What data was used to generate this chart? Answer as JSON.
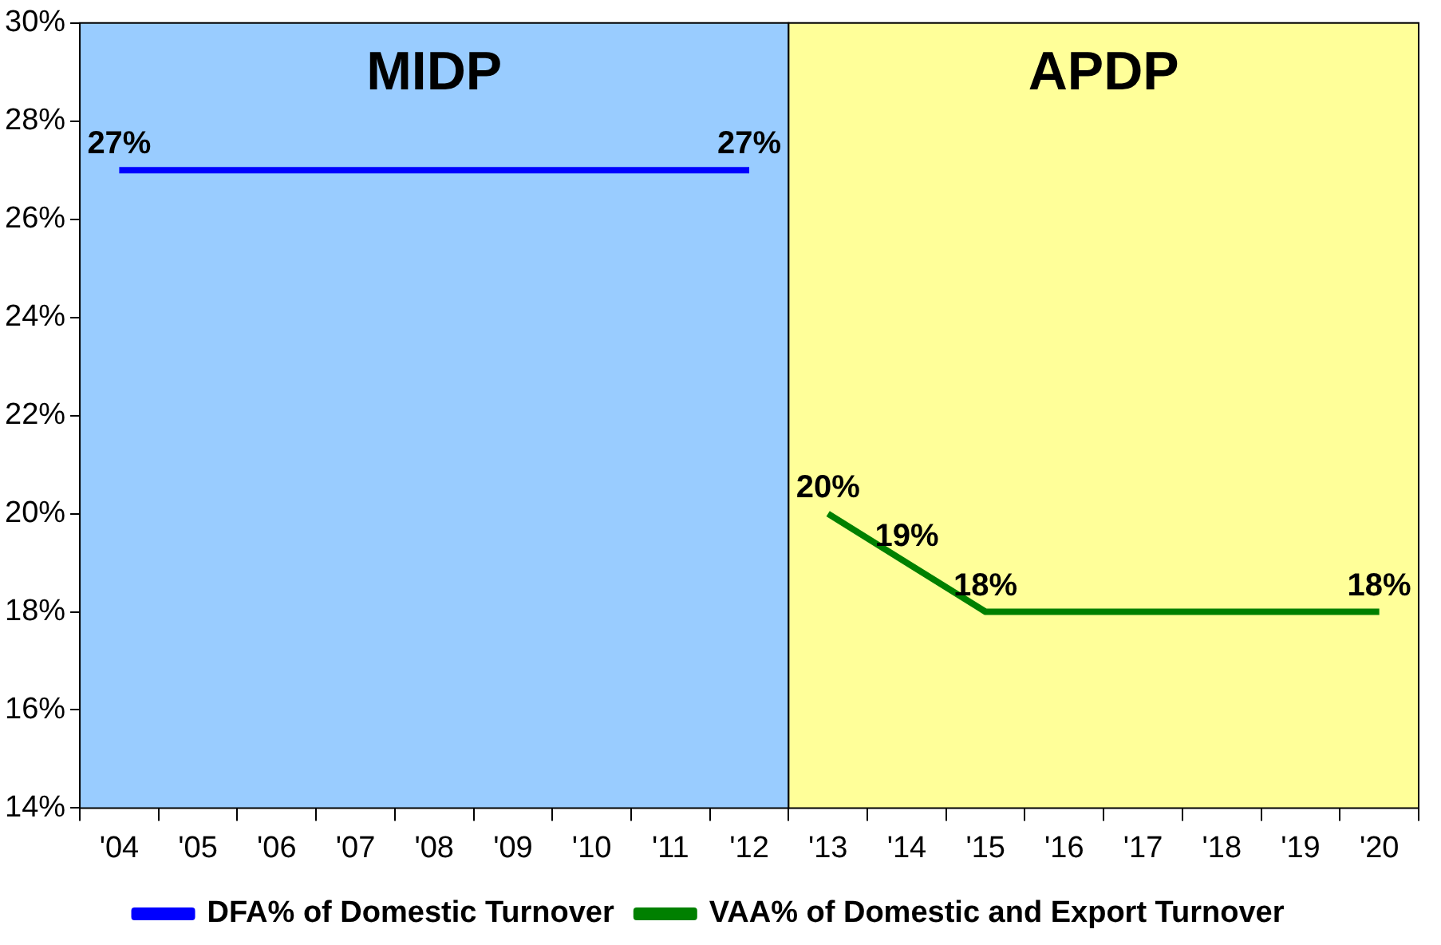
{
  "chart_data": {
    "type": "line",
    "categories": [
      "'04",
      "'05",
      "'06",
      "'07",
      "'08",
      "'09",
      "'10",
      "'11",
      "'12",
      "'13",
      "'14",
      "'15",
      "'16",
      "'17",
      "'18",
      "'19",
      "'20"
    ],
    "series": [
      {
        "name": "DFA% of Domestic Turnover",
        "color": "#0000ff",
        "values": [
          27,
          27,
          27,
          27,
          27,
          27,
          27,
          27,
          27,
          null,
          null,
          null,
          null,
          null,
          null,
          null,
          null
        ],
        "value_labels": [
          "27%",
          null,
          null,
          null,
          null,
          null,
          null,
          null,
          "27%",
          null,
          null,
          null,
          null,
          null,
          null,
          null,
          null
        ]
      },
      {
        "name": "VAA% of Domestic and Export Turnover",
        "color": "#008000",
        "values": [
          null,
          null,
          null,
          null,
          null,
          null,
          null,
          null,
          null,
          20,
          19,
          18,
          18,
          18,
          18,
          18,
          18
        ],
        "value_labels": [
          null,
          null,
          null,
          null,
          null,
          null,
          null,
          null,
          null,
          "20%",
          "19%",
          "18%",
          null,
          null,
          null,
          null,
          "18%"
        ]
      }
    ],
    "ylim": [
      14,
      30
    ],
    "yticks": [
      {
        "value": 14,
        "label": "14%"
      },
      {
        "value": 16,
        "label": "16%"
      },
      {
        "value": 18,
        "label": "18%"
      },
      {
        "value": 20,
        "label": "20%"
      },
      {
        "value": 22,
        "label": "22%"
      },
      {
        "value": 24,
        "label": "24%"
      },
      {
        "value": 26,
        "label": "26%"
      },
      {
        "value": 28,
        "label": "28%"
      },
      {
        "value": 30,
        "label": "30%"
      }
    ],
    "bands": [
      {
        "axis": "x",
        "from": "'04",
        "to": "'12",
        "label": "MIDP",
        "color": "#99ccff"
      },
      {
        "axis": "x",
        "from": "'13",
        "to": "'20",
        "label": "APDP",
        "color": "#ffff99"
      }
    ],
    "legend": "bottom",
    "marker": "none",
    "line_style": "solid"
  }
}
